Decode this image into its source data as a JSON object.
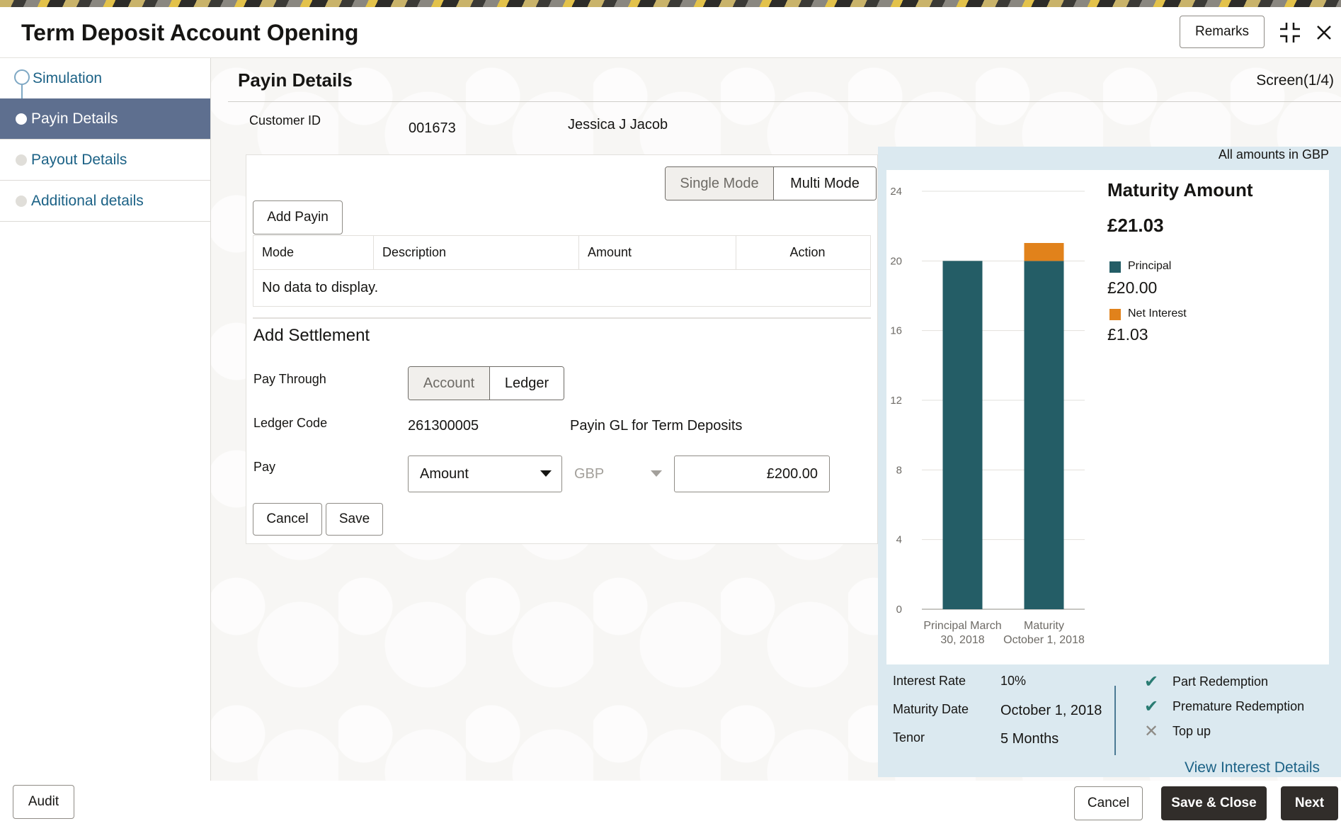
{
  "header": {
    "title": "Term Deposit Account Opening",
    "remarks_label": "Remarks"
  },
  "sidebar": {
    "items": [
      {
        "label": "Simulation",
        "state": "completed"
      },
      {
        "label": "Payin Details",
        "state": "active"
      },
      {
        "label": "Payout Details",
        "state": "pending"
      },
      {
        "label": "Additional details",
        "state": "pending"
      }
    ]
  },
  "main": {
    "title": "Payin Details",
    "screen_indicator": "Screen(1/4)",
    "customer_id_label": "Customer ID",
    "customer_id": "001673",
    "customer_name": "Jessica J Jacob",
    "mode_toggle": {
      "options": [
        "Single Mode",
        "Multi Mode"
      ],
      "selected": "Multi Mode"
    },
    "add_payin_label": "Add Payin",
    "table": {
      "columns": [
        "Mode",
        "Description",
        "Amount",
        "Action"
      ],
      "empty_text": "No data to display."
    },
    "settlement": {
      "title": "Add Settlement",
      "pay_through_label": "Pay Through",
      "pay_through_options": [
        "Account",
        "Ledger"
      ],
      "pay_through_selected": "Ledger",
      "ledger_code_label": "Ledger Code",
      "ledger_code": "261300005",
      "ledger_description": "Payin GL for Term Deposits",
      "pay_label": "Pay",
      "pay_type": "Amount",
      "currency": "GBP",
      "amount": "£200.00",
      "cancel_label": "Cancel",
      "save_label": "Save"
    }
  },
  "summary": {
    "amounts_note": "All amounts in GBP",
    "maturity_title": "Maturity Amount",
    "maturity_amount": "£21.03",
    "principal_label": "Principal",
    "principal_value": "£20.00",
    "net_interest_label": "Net Interest",
    "net_interest_value": "£1.03",
    "interest_rate_label": "Interest Rate",
    "interest_rate": "10%",
    "maturity_date_label": "Maturity Date",
    "maturity_date": "October 1, 2018",
    "tenor_label": "Tenor",
    "tenor": "5 Months",
    "features": [
      {
        "label": "Part Redemption",
        "enabled": true
      },
      {
        "label": "Premature Redemption",
        "enabled": true
      },
      {
        "label": "Top up",
        "enabled": false
      }
    ],
    "view_interest_label": "View Interest Details"
  },
  "chart_data": {
    "type": "bar",
    "stacked": true,
    "categories": [
      "Principal March 30, 2018",
      "Maturity October 1, 2018"
    ],
    "series": [
      {
        "name": "Principal",
        "values": [
          20,
          20
        ],
        "color": "#245d66"
      },
      {
        "name": "Net Interest",
        "values": [
          0,
          1.03
        ],
        "color": "#e1821b"
      }
    ],
    "ylim": [
      0,
      24
    ],
    "yticks": [
      0,
      4,
      8,
      12,
      16,
      20,
      24
    ],
    "grid": true
  },
  "footer": {
    "audit_label": "Audit",
    "cancel_label": "Cancel",
    "save_close_label": "Save & Close",
    "next_label": "Next"
  }
}
